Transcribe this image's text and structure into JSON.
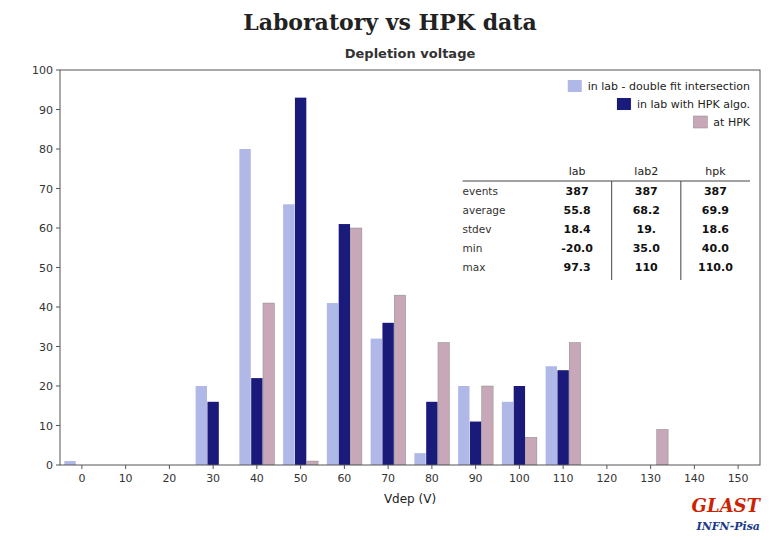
{
  "chart_data": {
    "type": "bar",
    "title": "Laboratory vs HPK data",
    "subtitle": "Depletion voltage",
    "x_label": "Vdep (V)",
    "x": [
      0,
      10,
      20,
      30,
      40,
      50,
      60,
      70,
      80,
      90,
      100,
      110,
      120,
      130,
      140,
      150
    ],
    "series": [
      {
        "name": "in lab - double fit intersection",
        "color": "#b0b8e8",
        "values": [
          1,
          0,
          0,
          20,
          80,
          66,
          41,
          32,
          3,
          20,
          16,
          25,
          0,
          0,
          0,
          0
        ]
      },
      {
        "name": "in lab with HPK algo.",
        "color": "#1a1a7a",
        "values": [
          0,
          0,
          0,
          16,
          22,
          93,
          61,
          36,
          16,
          11,
          20,
          24,
          0,
          0,
          0,
          0
        ]
      },
      {
        "name": "at HPK",
        "color": "#c8a8b8",
        "values": [
          0,
          0,
          0,
          0,
          41,
          1,
          60,
          43,
          31,
          20,
          7,
          31,
          0,
          9,
          0,
          0
        ]
      }
    ],
    "xlim": [
      -5,
      155
    ],
    "xticks": [
      0,
      10,
      20,
      30,
      40,
      50,
      60,
      70,
      80,
      90,
      100,
      110,
      120,
      130,
      140,
      150
    ],
    "ylim": [
      0,
      100
    ],
    "yticks": [
      0,
      10,
      20,
      30,
      40,
      50,
      60,
      70,
      80,
      90,
      100
    ],
    "grid": false,
    "legend": "upper right",
    "table": {
      "columns": [
        "lab",
        "lab2",
        "hpk"
      ],
      "rows": [
        "events",
        "average",
        "stdev",
        "min",
        "max"
      ],
      "cells": [
        [
          "387",
          "387",
          "387"
        ],
        [
          "55.8",
          "68.2",
          "69.9"
        ],
        [
          "18.4",
          "19.",
          "18.6"
        ],
        [
          "-20.0",
          "35.0",
          "40.0"
        ],
        [
          "97.3",
          "110",
          "110.0"
        ]
      ]
    },
    "annotations": [
      {
        "text": "GLAST",
        "color": "#cc2200"
      },
      {
        "text": "INFN-Pisa",
        "color": "#1a3a8a"
      }
    ]
  }
}
